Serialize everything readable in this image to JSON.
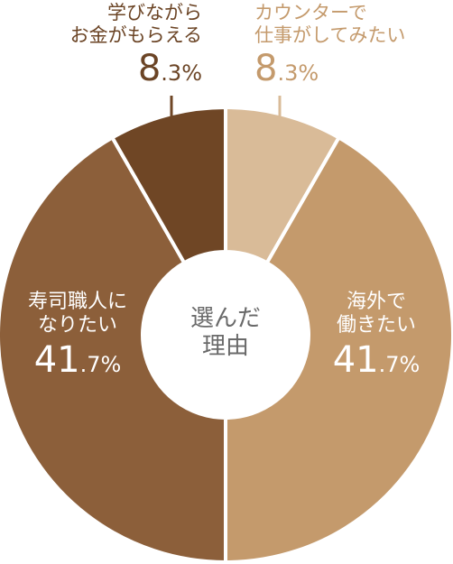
{
  "chart_data": {
    "type": "donut",
    "center_label": [
      "選んだ",
      "理由"
    ],
    "slices": [
      {
        "label": [
          "カウンターで",
          "仕事がしてみたい"
        ],
        "value": 8.3,
        "value_int": "8",
        "value_dec": ".3%",
        "color": "#d9bb98"
      },
      {
        "label": [
          "海外で",
          "働きたい"
        ],
        "value": 41.7,
        "value_int": "41",
        "value_dec": ".7%",
        "color": "#c49a6c"
      },
      {
        "label": [
          "寿司職人に",
          "なりたい"
        ],
        "value": 41.7,
        "value_int": "41",
        "value_dec": ".7%",
        "color": "#8c5f3a"
      },
      {
        "label": [
          "学びながら",
          "お金がもらえる"
        ],
        "value": 8.3,
        "value_int": "8",
        "value_dec": ".3%",
        "color": "#6f4625"
      }
    ]
  }
}
